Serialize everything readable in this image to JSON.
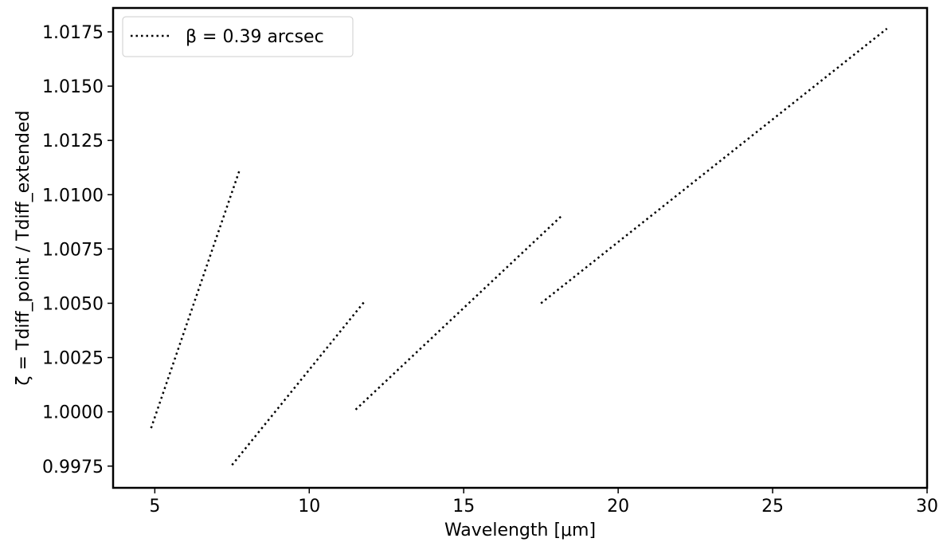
{
  "chart_data": {
    "type": "line",
    "title": "",
    "xlabel": "Wavelength [μm]",
    "ylabel": "ζ = Tdiff_point / Tdiff_extended",
    "xlim": [
      3.65,
      30.0
    ],
    "ylim": [
      0.9965,
      1.0186
    ],
    "xticks": [
      5,
      10,
      15,
      20,
      25,
      30
    ],
    "xtick_labels": [
      "5",
      "10",
      "15",
      "20",
      "25",
      "30"
    ],
    "yticks": [
      0.9975,
      1.0,
      1.0025,
      1.005,
      1.0075,
      1.01,
      1.0125,
      1.015,
      1.0175
    ],
    "ytick_labels": [
      "0.9975",
      "1.0000",
      "1.0025",
      "1.0050",
      "1.0075",
      "1.0100",
      "1.0125",
      "1.0150",
      "1.0175"
    ],
    "grid": false,
    "legend_position": "top-left",
    "series": [
      {
        "name": "β = 0.39 arcsec",
        "line_style": "dotted",
        "color": "#000000",
        "segments": [
          {
            "x": [
              4.88,
              7.76
            ],
            "y": [
              0.99925,
              1.0112
            ]
          },
          {
            "x": [
              7.5,
              11.8
            ],
            "y": [
              0.99755,
              1.0051
            ]
          },
          {
            "x": [
              11.5,
              18.15
            ],
            "y": [
              1.0001,
              1.009
            ]
          },
          {
            "x": [
              17.5,
              28.7
            ],
            "y": [
              1.005,
              1.01765
            ]
          }
        ]
      }
    ]
  }
}
